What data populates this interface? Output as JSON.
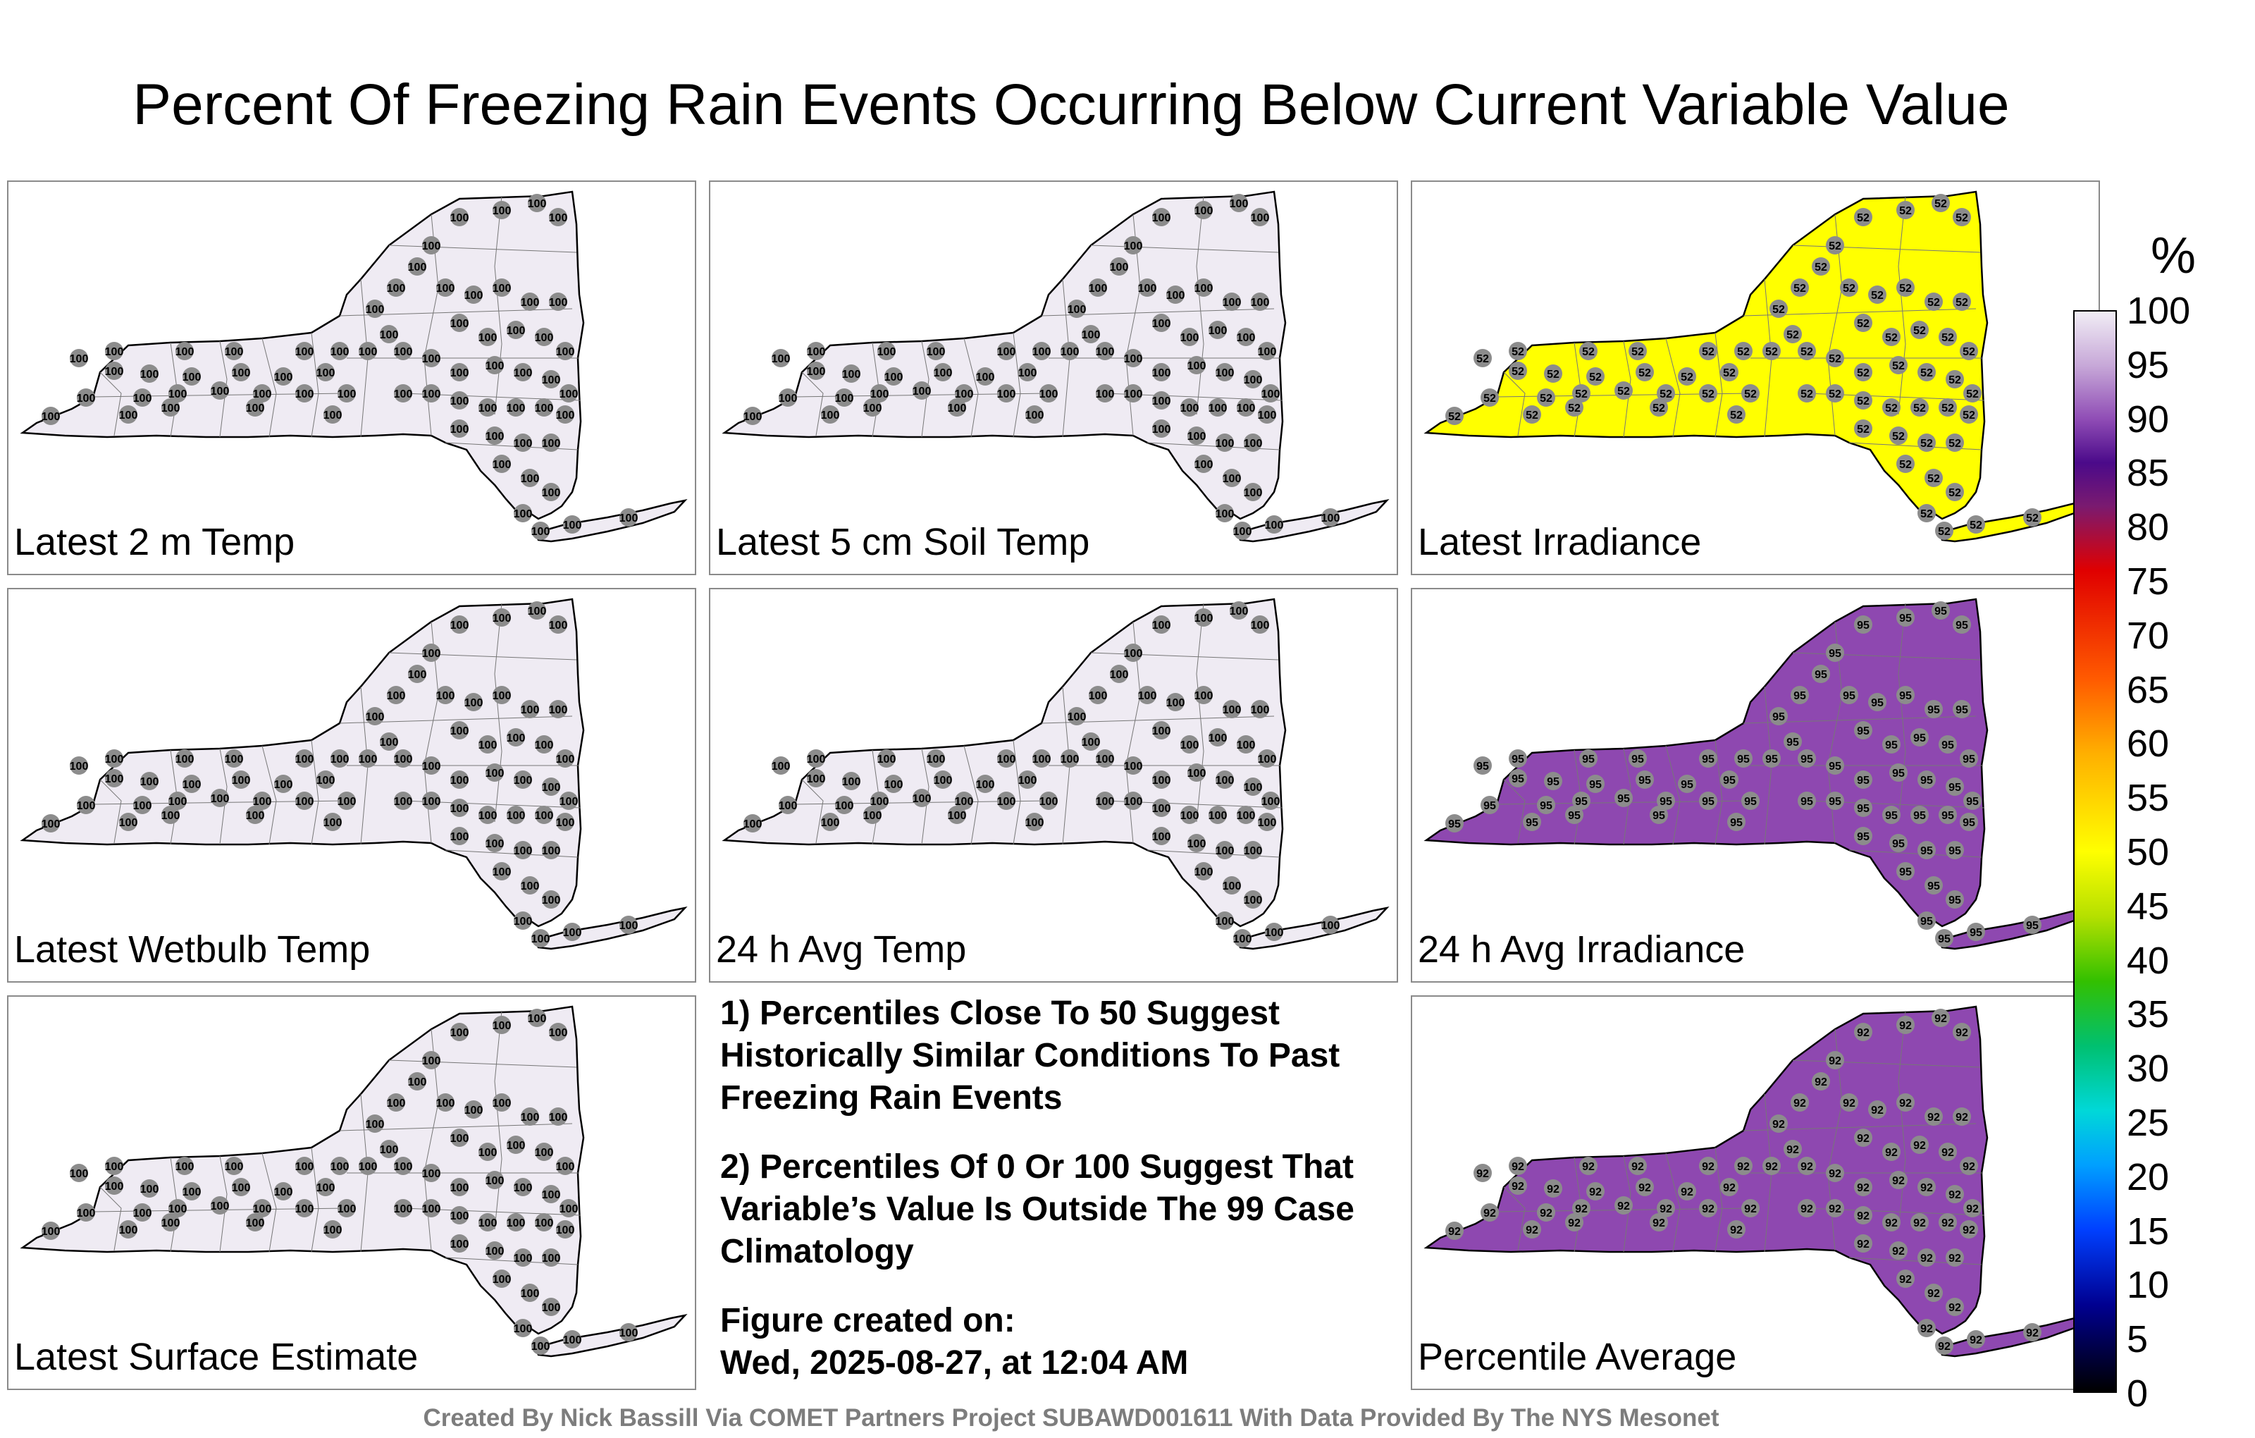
{
  "title": "Percent Of Freezing Rain Events Occurring Below Current Variable Value",
  "colorbar": {
    "unit": "%",
    "ticks": [
      "100",
      "95",
      "90",
      "85",
      "80",
      "75",
      "70",
      "65",
      "60",
      "55",
      "50",
      "45",
      "40",
      "35",
      "30",
      "25",
      "20",
      "15",
      "10",
      "5",
      "0"
    ]
  },
  "panels": [
    {
      "label": "Latest 2 m Temp",
      "station_value": "100",
      "fill": "#efebf3"
    },
    {
      "label": "Latest 5 cm Soil Temp",
      "station_value": "100",
      "fill": "#efebf3"
    },
    {
      "label": "Latest Irradiance",
      "station_value": "52",
      "fill": "#ffff00"
    },
    {
      "label": "Latest Wetbulb Temp",
      "station_value": "100",
      "fill": "#efebf3"
    },
    {
      "label": "24 h Avg Temp",
      "station_value": "100",
      "fill": "#efebf3"
    },
    {
      "label": "24 h Avg Irradiance",
      "station_value": "95",
      "fill": "#8e48b0"
    },
    {
      "label": "Latest Surface Estimate",
      "station_value": "100",
      "fill": "#efebf3"
    },
    {
      "label": "Percentile Average",
      "station_value": "92",
      "fill": "#8e48b0"
    }
  ],
  "notes": {
    "note1": "1) Percentiles Close To 50 Suggest Historically Similar Conditions To Past Freezing Rain Events",
    "note2": "2) Percentiles Of 0 Or 100 Suggest That Variable’s Value Is Outside The 99 Case Climatology",
    "created_label": "Figure created on:",
    "created_value": "Wed, 2025-08-27, at 12:04 AM"
  },
  "footer": "Created By Nick Bassill Via COMET Partners Project SUBAWD001611 With Data Provided By The NYS Mesonet"
}
